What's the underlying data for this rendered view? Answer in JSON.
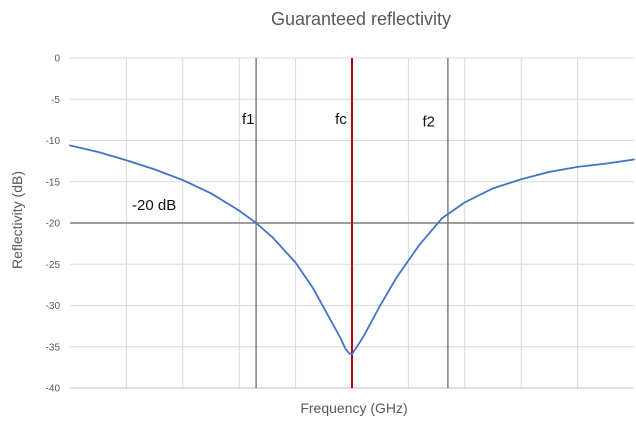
{
  "chart_data": {
    "type": "line",
    "title": "Guaranteed reflectivity",
    "xlabel": "Frequency (GHz)",
    "ylabel": "Reflectivity (dB)",
    "xlim": [
      0,
      10
    ],
    "ylim": [
      -40,
      0
    ],
    "y_ticks": [
      "0",
      "-5",
      "-10",
      "-15",
      "-20",
      "-25",
      "-30",
      "-35",
      "-40"
    ],
    "grid": true,
    "x_tick_labels_shown": false,
    "colors": {
      "curve": "#4472C4",
      "center_line": "#C00000",
      "reference_lines": "#7F7F7F",
      "grid": "#D9D9D9",
      "text": "#595959"
    },
    "series": [
      {
        "x": [
          0,
          0.5,
          1.0,
          1.5,
          2.0,
          2.5,
          3.0,
          3.3,
          3.6,
          4.0,
          4.3,
          4.6,
          4.8,
          4.88,
          4.95,
          5.0,
          5.2,
          5.5,
          5.8,
          6.2,
          6.6,
          7.0,
          7.5,
          8.0,
          8.5,
          9.0,
          9.5,
          10.0
        ],
        "y": [
          -10.6,
          -11.4,
          -12.4,
          -13.5,
          -14.8,
          -16.4,
          -18.5,
          -20.0,
          -21.8,
          -24.8,
          -27.8,
          -31.5,
          -34.0,
          -35.2,
          -35.8,
          -35.9,
          -33.8,
          -30.0,
          -26.5,
          -22.6,
          -19.4,
          -17.5,
          -15.8,
          -14.7,
          -13.8,
          -13.2,
          -12.8,
          -12.3
        ]
      }
    ],
    "reference_lines": {
      "horizontal": [
        -20
      ],
      "vertical": [
        {
          "x": 3.3,
          "label": "f1"
        },
        {
          "x": 5.0,
          "label": "fc"
        },
        {
          "x": 6.7,
          "label": "f2"
        }
      ]
    },
    "annotations": [
      {
        "text": "-20 dB",
        "x": 1.1,
        "y": -18.4
      },
      {
        "text": "f1",
        "x": 3.05,
        "y": -8.0
      },
      {
        "text": "fc",
        "x": 4.7,
        "y": -8.0
      },
      {
        "text": "f2",
        "x": 6.25,
        "y": -8.3
      }
    ]
  }
}
